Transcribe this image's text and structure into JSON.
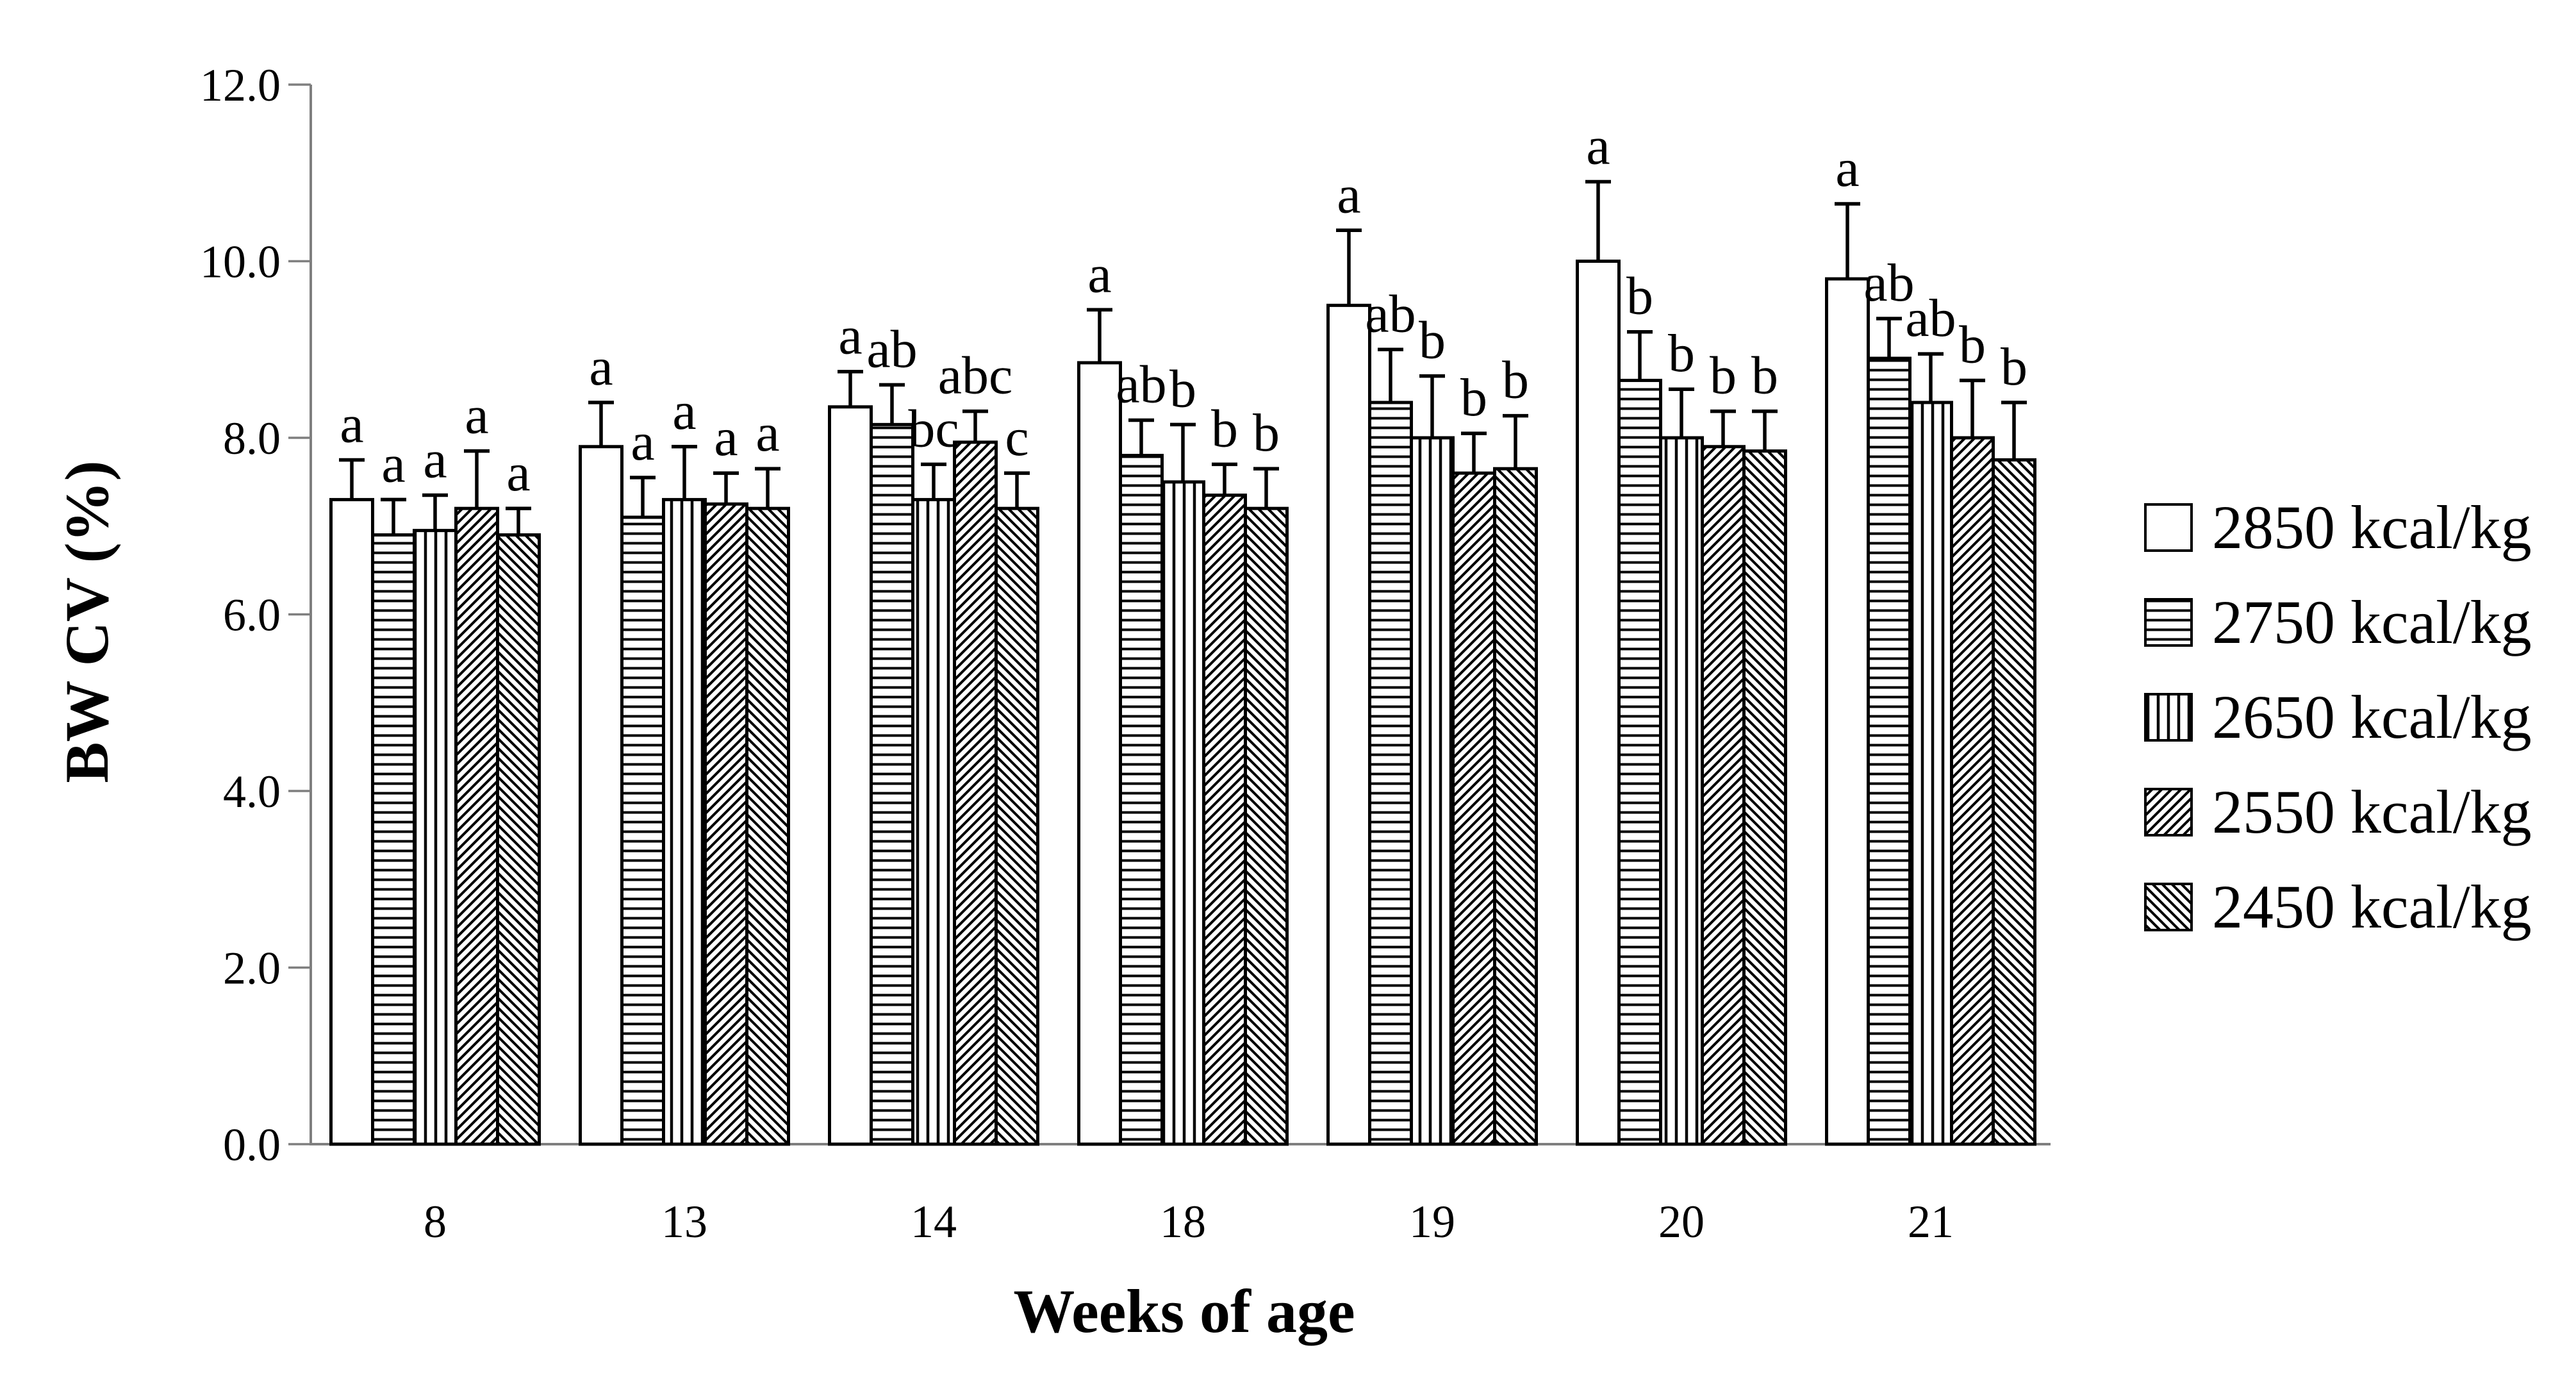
{
  "chart_data": {
    "type": "bar",
    "title": "",
    "xlabel": "Weeks of age",
    "ylabel": "BW CV (%)",
    "ylim": [
      0,
      12
    ],
    "ytick_labels": [
      "12.0",
      "10.0",
      "8.0",
      "6.0",
      "4.0",
      "2.0",
      "0.0"
    ],
    "ytick_values": [
      12,
      10,
      8,
      6,
      4,
      2,
      0
    ],
    "categories": [
      "8",
      "13",
      "14",
      "18",
      "19",
      "20",
      "21"
    ],
    "grid": false,
    "legend_position": "right",
    "error_bars": "upper",
    "series": [
      {
        "name": "2850 kcal/kg",
        "pattern": "solid",
        "values": [
          7.3,
          7.9,
          8.35,
          8.85,
          9.5,
          10.0,
          9.8
        ],
        "errors": [
          0.45,
          0.5,
          0.4,
          0.6,
          0.85,
          0.9,
          0.85
        ],
        "letters": [
          "a",
          "a",
          "a",
          "a",
          "a",
          "a",
          "a"
        ]
      },
      {
        "name": "2750 kcal/kg",
        "pattern": "hlines",
        "values": [
          6.9,
          7.1,
          8.15,
          7.8,
          8.4,
          8.65,
          8.9
        ],
        "errors": [
          0.4,
          0.45,
          0.45,
          0.4,
          0.6,
          0.55,
          0.45
        ],
        "letters": [
          "a",
          "a",
          "ab",
          "ab",
          "ab",
          "b",
          "ab"
        ]
      },
      {
        "name": "2650 kcal/kg",
        "pattern": "vlines",
        "values": [
          6.95,
          7.3,
          7.3,
          7.5,
          8.0,
          8.0,
          8.4
        ],
        "errors": [
          0.4,
          0.6,
          0.4,
          0.65,
          0.7,
          0.55,
          0.55
        ],
        "letters": [
          "a",
          "a",
          "bc",
          "b",
          "b",
          "b",
          "ab"
        ]
      },
      {
        "name": "2550 kcal/kg",
        "pattern": "diag-up",
        "values": [
          7.2,
          7.25,
          7.95,
          7.35,
          7.6,
          7.9,
          8.0
        ],
        "errors": [
          0.65,
          0.35,
          0.35,
          0.35,
          0.45,
          0.4,
          0.65
        ],
        "letters": [
          "a",
          "a",
          "abc",
          "b",
          "b",
          "b",
          "b"
        ]
      },
      {
        "name": "2450 kcal/kg",
        "pattern": "diag-down",
        "values": [
          6.9,
          7.2,
          7.2,
          7.2,
          7.65,
          7.85,
          7.75
        ],
        "errors": [
          0.3,
          0.45,
          0.4,
          0.45,
          0.6,
          0.45,
          0.65
        ],
        "letters": [
          "a",
          "a",
          "c",
          "b",
          "b",
          "b",
          "b"
        ]
      }
    ]
  }
}
